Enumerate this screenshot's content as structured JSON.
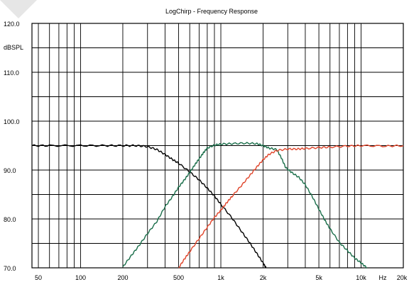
{
  "chart_data": {
    "type": "line",
    "title": "LogChirp - Frequency Response",
    "ylabel": "dBSPL",
    "xunit": "Hz",
    "xscale": "log",
    "xlim": [
      45,
      20000
    ],
    "ylim": [
      70,
      120
    ],
    "grid": true,
    "legend": "none",
    "y_ticks": [
      {
        "value": 120,
        "label": "120.0"
      },
      {
        "value": 110,
        "label": "110.0"
      },
      {
        "value": 100,
        "label": "100.0"
      },
      {
        "value": 90,
        "label": "90.0"
      },
      {
        "value": 80,
        "label": "80.0"
      },
      {
        "value": 70,
        "label": "70.0"
      }
    ],
    "x_ticks": [
      {
        "value": 50,
        "label": "50"
      },
      {
        "value": 100,
        "label": "100"
      },
      {
        "value": 200,
        "label": "200"
      },
      {
        "value": 500,
        "label": "500"
      },
      {
        "value": 1000,
        "label": "1k"
      },
      {
        "value": 2000,
        "label": "2k"
      },
      {
        "value": 5000,
        "label": "5k"
      },
      {
        "value": 10000,
        "label": "10k"
      },
      {
        "value": 20000,
        "label": "20k"
      }
    ],
    "series": [
      {
        "color": "#000000",
        "x": [
          45,
          60,
          100,
          150,
          200,
          250,
          300,
          350,
          400,
          450,
          500,
          600,
          700,
          800,
          900,
          1000,
          1200,
          1400,
          1600,
          1800,
          2000,
          2100
        ],
        "y": [
          95,
          95,
          95,
          95,
          95,
          95,
          94.8,
          94.2,
          93.2,
          92.2,
          91.4,
          89.6,
          88.0,
          86.3,
          84.7,
          83.0,
          80.2,
          77.5,
          75.2,
          73.0,
          71.0,
          70.0
        ]
      },
      {
        "color": "#1a6e4a",
        "x": [
          200,
          230,
          260,
          300,
          350,
          400,
          450,
          500,
          550,
          600,
          650,
          700,
          750,
          800,
          900,
          1000,
          1200,
          1500,
          1800,
          2000,
          2200,
          2500,
          2700,
          2900,
          3200,
          3600,
          4000,
          4500,
          5000,
          5500,
          6000,
          7000,
          8000,
          9000,
          10000,
          11000
        ],
        "y": [
          70.2,
          72.5,
          74.5,
          77.0,
          79.5,
          82.5,
          84.5,
          86.5,
          88.0,
          89.5,
          91.0,
          92.3,
          93.5,
          94.5,
          95.1,
          95.3,
          95.4,
          95.5,
          95.4,
          95.0,
          94.5,
          94.2,
          92.5,
          90.5,
          89.5,
          88.5,
          87.0,
          84.5,
          82.0,
          79.8,
          78.0,
          75.2,
          73.5,
          72.0,
          71.0,
          70.0
        ]
      },
      {
        "color": "#e0452b",
        "x": [
          500,
          550,
          600,
          700,
          800,
          900,
          1000,
          1100,
          1200,
          1400,
          1600,
          1800,
          2000,
          2200,
          2500,
          3000,
          3500,
          4000,
          5000,
          6000,
          8000,
          10000,
          15000,
          20000
        ],
        "y": [
          70.0,
          71.8,
          73.3,
          76.0,
          78.3,
          80.3,
          81.8,
          83.3,
          84.6,
          86.8,
          88.8,
          90.6,
          92.1,
          93.2,
          94.0,
          94.3,
          94.3,
          94.4,
          94.6,
          94.7,
          94.9,
          95.0,
          94.9,
          95.0
        ]
      }
    ]
  }
}
